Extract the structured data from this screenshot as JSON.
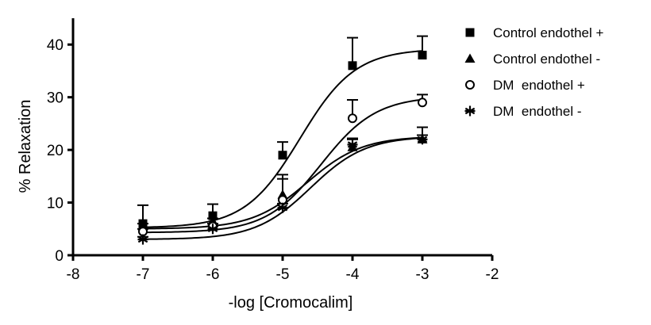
{
  "chart_data": {
    "type": "scatter",
    "title": "",
    "xlabel": "-log [Cromocalim]",
    "ylabel": "% Relaxation",
    "xlim": [
      -8,
      -2
    ],
    "ylim": [
      0,
      45
    ],
    "xticks": [
      -8,
      -7,
      -6,
      -5,
      -4,
      -3,
      -2
    ],
    "yticks": [
      0,
      10,
      20,
      30,
      40
    ],
    "grid": false,
    "legend_position": "top-right",
    "series": [
      {
        "name": "Control endothel +",
        "marker": "filled-square",
        "x": [
          -7,
          -6,
          -5,
          -4,
          -3
        ],
        "y": [
          6,
          7.5,
          19,
          36,
          38
        ],
        "error": [
          3.5,
          2.2,
          2.5,
          5.3,
          3.6
        ],
        "fit": {
          "bottom": 5.2,
          "top": 39.2,
          "logEC50": -4.75,
          "hill": 1.1
        }
      },
      {
        "name": "Control endothel -",
        "marker": "filled-triangle",
        "x": [
          -7,
          -6,
          -5,
          -4,
          -3
        ],
        "y": [
          5.5,
          6.5,
          11.5,
          20.5,
          22
        ],
        "error": [
          0.5,
          0.5,
          3,
          1.5,
          0.8
        ],
        "fit": {
          "bottom": 5.0,
          "top": 22.6,
          "logEC50": -4.65,
          "hill": 1.1
        }
      },
      {
        "name": "DM  endothel +",
        "marker": "open-circle",
        "x": [
          -7,
          -6,
          -5,
          -4,
          -3
        ],
        "y": [
          4.5,
          5.5,
          10.5,
          26,
          29
        ],
        "error": [
          0.5,
          0.5,
          4.8,
          3.5,
          1.5
        ],
        "fit": {
          "bottom": 4.3,
          "top": 30.2,
          "logEC50": -4.45,
          "hill": 1.1
        }
      },
      {
        "name": "DM  endothel -",
        "marker": "asterisk",
        "x": [
          -7,
          -6,
          -5,
          -4,
          -3
        ],
        "y": [
          3,
          5,
          9,
          21,
          22
        ],
        "error": [
          0.5,
          0.5,
          0.8,
          1.2,
          2.3
        ],
        "fit": {
          "bottom": 3.0,
          "top": 22.6,
          "logEC50": -4.6,
          "hill": 1.1
        }
      }
    ]
  }
}
